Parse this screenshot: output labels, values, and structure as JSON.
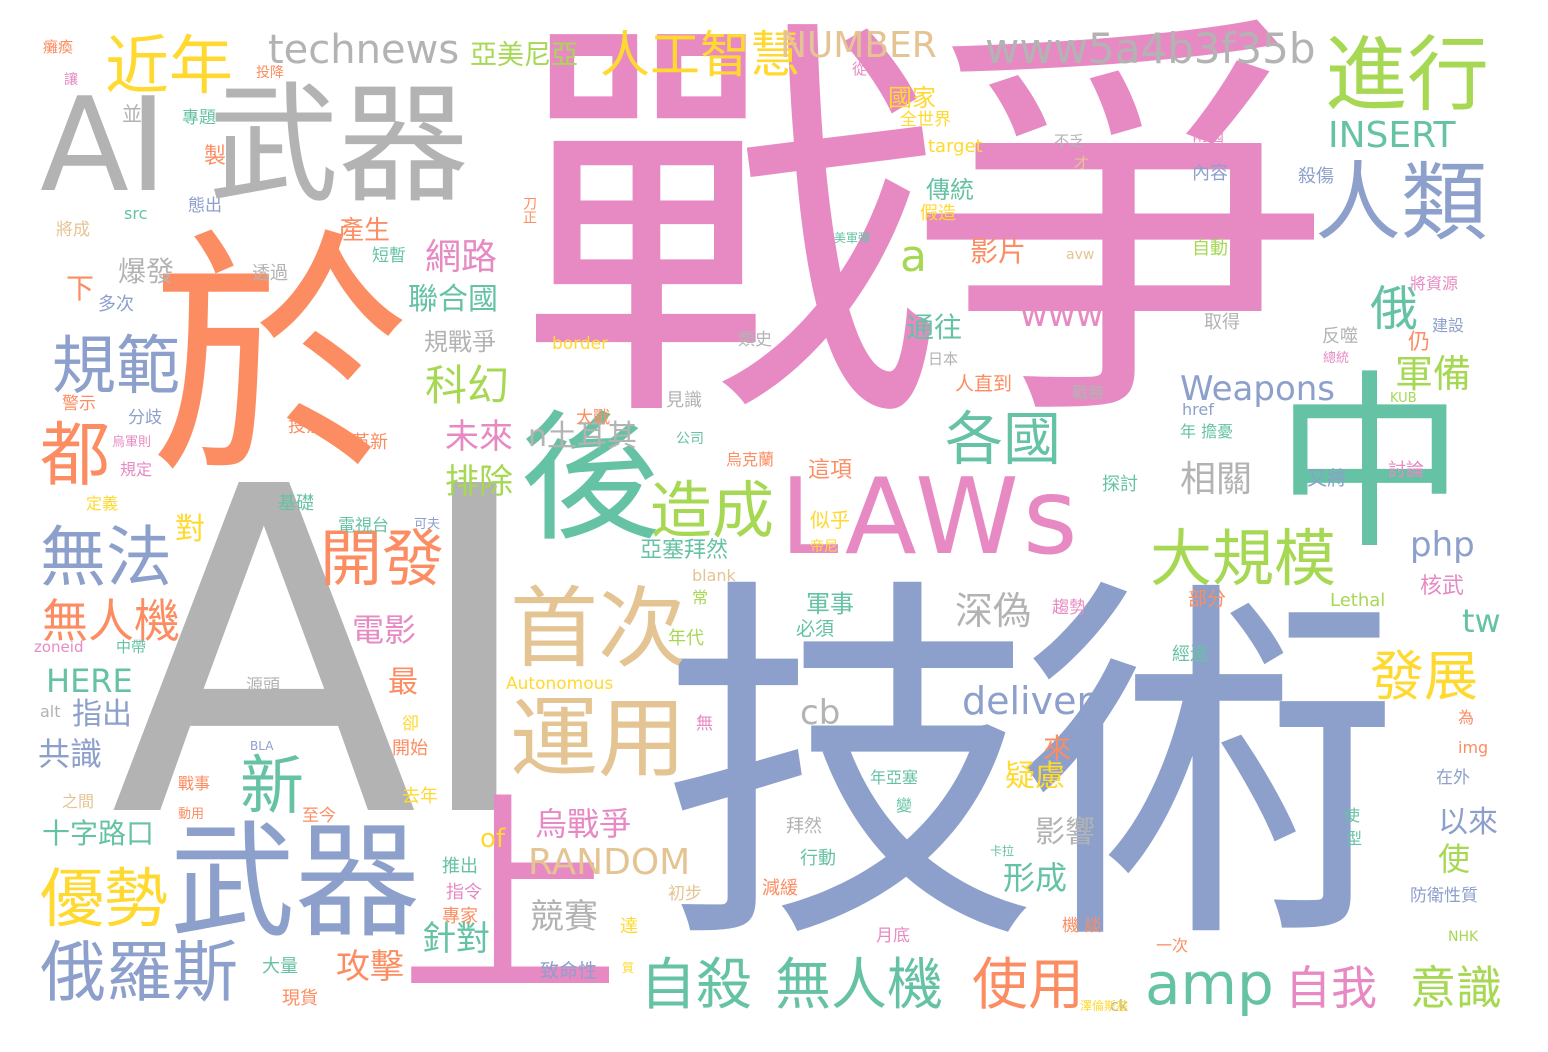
{
  "colors": {
    "gray": "#b3b3b3",
    "pink": "#e78ac3",
    "orange": "#fc8d62",
    "blue": "#8da0cb",
    "green": "#66c2a5",
    "lime": "#a6d854",
    "yellow": "#ffd92f",
    "tan": "#e5c494"
  },
  "words": [
    {
      "text": "戰爭",
      "color": "pink"
    },
    {
      "text": "AI",
      "color": "gray"
    },
    {
      "text": "技術",
      "color": "blue"
    },
    {
      "text": "於",
      "color": "orange"
    },
    {
      "text": "AI 武器",
      "color": "gray"
    },
    {
      "text": "中",
      "color": "green"
    },
    {
      "text": "武器",
      "color": "blue"
    },
    {
      "text": "LAWs",
      "color": "pink"
    },
    {
      "text": "後",
      "color": "green"
    },
    {
      "text": "上",
      "color": "pink"
    },
    {
      "text": "進行",
      "color": "lime"
    },
    {
      "text": "人類",
      "color": "blue"
    },
    {
      "text": "運用",
      "color": "tan"
    },
    {
      "text": "首次",
      "color": "tan"
    },
    {
      "text": "technews",
      "color": "gray"
    },
    {
      "text": "www5a4b3f35b",
      "color": "gray"
    },
    {
      "text": "人工智慧",
      "color": "yellow"
    },
    {
      "text": "NUMBER",
      "color": "tan"
    },
    {
      "text": "亞美尼亞",
      "color": "lime"
    },
    {
      "text": "近年",
      "color": "yellow"
    },
    {
      "text": "規範",
      "color": "blue"
    },
    {
      "text": "都",
      "color": "orange"
    },
    {
      "text": "無法",
      "color": "blue"
    },
    {
      "text": "無人機",
      "color": "orange"
    },
    {
      "text": "優勢",
      "color": "yellow"
    },
    {
      "text": "俄羅斯",
      "color": "blue"
    },
    {
      "text": "開發",
      "color": "orange"
    },
    {
      "text": "新",
      "color": "green"
    },
    {
      "text": "造成",
      "color": "lime"
    },
    {
      "text": "各國",
      "color": "green"
    },
    {
      "text": "大規模",
      "color": "lime"
    },
    {
      "text": "自殺",
      "color": "green"
    },
    {
      "text": "無人機",
      "color": "green"
    },
    {
      "text": "使用",
      "color": "orange"
    },
    {
      "text": "amp",
      "color": "green"
    },
    {
      "text": "自我",
      "color": "pink"
    },
    {
      "text": "意識",
      "color": "lime"
    },
    {
      "text": "發展",
      "color": "yellow"
    },
    {
      "text": "INSERT",
      "color": "green"
    },
    {
      "text": "俄",
      "color": "green"
    },
    {
      "text": "a",
      "color": "lime"
    },
    {
      "text": "www",
      "color": "pink"
    },
    {
      "text": "delivery",
      "color": "blue"
    },
    {
      "text": "Weapons",
      "color": "blue"
    },
    {
      "text": "RANDOM",
      "color": "tan"
    },
    {
      "text": "烏戰爭",
      "color": "pink"
    },
    {
      "text": "網路",
      "color": "pink"
    },
    {
      "text": "聯合國",
      "color": "green"
    },
    {
      "text": "科幻",
      "color": "lime"
    },
    {
      "text": "未來",
      "color": "pink"
    },
    {
      "text": "排除",
      "color": "lime"
    },
    {
      "text": "電影",
      "color": "pink"
    },
    {
      "text": "攻擊",
      "color": "orange"
    },
    {
      "text": "針對",
      "color": "green"
    },
    {
      "text": "競賽",
      "color": "gray"
    },
    {
      "text": "深偽",
      "color": "gray"
    },
    {
      "text": "相關",
      "color": "gray"
    },
    {
      "text": "軍備",
      "color": "lime"
    },
    {
      "text": "php",
      "color": "blue"
    },
    {
      "text": "tw",
      "color": "green"
    },
    {
      "text": "cb",
      "color": "gray"
    },
    {
      "text": "十字路口",
      "color": "green"
    },
    {
      "text": "HERE",
      "color": "green"
    },
    {
      "text": "共識",
      "color": "blue"
    },
    {
      "text": "指出",
      "color": "blue"
    },
    {
      "text": "形成",
      "color": "green"
    },
    {
      "text": "影響",
      "color": "gray"
    },
    {
      "text": "以來",
      "color": "blue"
    },
    {
      "text": "使",
      "color": "lime"
    },
    {
      "text": "軍事",
      "color": "green"
    },
    {
      "text": "傳統",
      "color": "green"
    },
    {
      "text": "通往",
      "color": "green"
    },
    {
      "text": "影片",
      "color": "orange"
    },
    {
      "text": "國家",
      "color": "yellow"
    },
    {
      "text": "產生",
      "color": "orange"
    },
    {
      "text": "爆發",
      "color": "gray"
    },
    {
      "text": "下",
      "color": "orange"
    },
    {
      "text": "規戰爭",
      "color": "gray"
    },
    {
      "text": "最",
      "color": "orange"
    },
    {
      "text": "疑慮",
      "color": "yellow"
    },
    {
      "text": "來",
      "color": "orange"
    },
    {
      "text": "of",
      "color": "yellow"
    },
    {
      "text": "n土耳其",
      "color": "gray"
    },
    {
      "text": "對",
      "color": "yellow"
    },
    {
      "text": "製",
      "color": "orange"
    },
    {
      "text": "並",
      "color": "gray"
    },
    {
      "text": "專題",
      "color": "green"
    },
    {
      "text": "態出",
      "color": "blue"
    },
    {
      "text": "src",
      "color": "green"
    },
    {
      "text": "將成",
      "color": "tan"
    },
    {
      "text": "短暫",
      "color": "green"
    },
    {
      "text": "透過",
      "color": "gray"
    },
    {
      "text": "多次",
      "color": "blue"
    },
    {
      "text": "分歧",
      "color": "blue"
    },
    {
      "text": "警示",
      "color": "orange"
    },
    {
      "text": "投注",
      "color": "orange"
    },
    {
      "text": "革新",
      "color": "orange"
    },
    {
      "text": "基礎",
      "color": "green"
    },
    {
      "text": "電視台",
      "color": "green"
    },
    {
      "text": "可夫",
      "color": "blue"
    },
    {
      "text": "亞塞拜然",
      "color": "green"
    },
    {
      "text": "似乎",
      "color": "yellow"
    },
    {
      "text": "帝尼",
      "color": "yellow"
    },
    {
      "text": "探討",
      "color": "green"
    },
    {
      "text": "討論",
      "color": "pink"
    },
    {
      "text": "又將",
      "color": "blue"
    },
    {
      "text": "年 擔憂",
      "color": "green"
    },
    {
      "text": "href",
      "color": "blue"
    },
    {
      "text": "KUB",
      "color": "lime"
    },
    {
      "text": "戰勝",
      "color": "gray"
    },
    {
      "text": "反噬",
      "color": "gray"
    },
    {
      "text": "總統",
      "color": "pink"
    },
    {
      "text": "仍",
      "color": "orange"
    },
    {
      "text": "建設",
      "color": "blue"
    },
    {
      "text": "將資源",
      "color": "pink"
    },
    {
      "text": "取得",
      "color": "gray"
    },
    {
      "text": "自動",
      "color": "lime"
    },
    {
      "text": "avw",
      "color": "tan"
    },
    {
      "text": "殺傷",
      "color": "blue"
    },
    {
      "text": "內容",
      "color": "blue"
    },
    {
      "text": "兩國",
      "color": "pink"
    },
    {
      "text": "不乏",
      "color": "gray"
    },
    {
      "text": "才",
      "color": "tan"
    },
    {
      "text": "全世界",
      "color": "yellow"
    },
    {
      "text": "target",
      "color": "yellow"
    },
    {
      "text": "假造",
      "color": "yellow"
    },
    {
      "text": "美軍彈",
      "color": "green"
    },
    {
      "text": "刀正",
      "color": "orange"
    },
    {
      "text": "從",
      "color": "pink"
    },
    {
      "text": "投降",
      "color": "orange"
    },
    {
      "text": "讓",
      "color": "pink"
    },
    {
      "text": "癱瘓",
      "color": "orange"
    },
    {
      "text": "人直到",
      "color": "orange"
    },
    {
      "text": "日本",
      "color": "gray"
    },
    {
      "text": "類史",
      "color": "gray"
    },
    {
      "text": "border",
      "color": "yellow"
    },
    {
      "text": "見識",
      "color": "gray"
    },
    {
      "text": "大戰",
      "color": "orange"
    },
    {
      "text": "公司",
      "color": "green"
    },
    {
      "text": "烏克蘭",
      "color": "orange"
    },
    {
      "text": "這項",
      "color": "orange"
    },
    {
      "text": "blank",
      "color": "tan"
    },
    {
      "text": "常",
      "color": "lime"
    },
    {
      "text": "年代",
      "color": "lime"
    },
    {
      "text": "必須",
      "color": "green"
    },
    {
      "text": "趨勢",
      "color": "pink"
    },
    {
      "text": "部分",
      "color": "orange"
    },
    {
      "text": "Lethal",
      "color": "lime"
    },
    {
      "text": "核武",
      "color": "pink"
    },
    {
      "text": "經過",
      "color": "green"
    },
    {
      "text": "為",
      "color": "orange"
    },
    {
      "text": "img",
      "color": "orange"
    },
    {
      "text": "在外",
      "color": "blue"
    },
    {
      "text": "使",
      "color": "green"
    },
    {
      "text": "型",
      "color": "green"
    },
    {
      "text": "防衛性質",
      "color": "blue"
    },
    {
      "text": "NHK",
      "color": "lime"
    },
    {
      "text": "ck",
      "color": "gray"
    },
    {
      "text": "一次",
      "color": "orange"
    },
    {
      "text": "機 談",
      "color": "orange"
    },
    {
      "text": "卡拉",
      "color": "green"
    },
    {
      "text": "澤倫斯基",
      "color": "yellow"
    },
    {
      "text": "月底",
      "color": "pink"
    },
    {
      "text": "減緩",
      "color": "orange"
    },
    {
      "text": "行動",
      "color": "green"
    },
    {
      "text": "拜然",
      "color": "gray"
    },
    {
      "text": "年亞塞",
      "color": "green"
    },
    {
      "text": "變",
      "color": "green"
    },
    {
      "text": "無",
      "color": "pink"
    },
    {
      "text": "初步",
      "color": "tan"
    },
    {
      "text": "Autonomous",
      "color": "yellow"
    },
    {
      "text": "致命性",
      "color": "blue"
    },
    {
      "text": "達",
      "color": "yellow"
    },
    {
      "text": "質",
      "color": "yellow"
    },
    {
      "text": "專家",
      "color": "orange"
    },
    {
      "text": "指令",
      "color": "pink"
    },
    {
      "text": "推出",
      "color": "green"
    },
    {
      "text": "現貨",
      "color": "orange"
    },
    {
      "text": "大量",
      "color": "green"
    },
    {
      "text": "去年",
      "color": "yellow"
    },
    {
      "text": "至今",
      "color": "orange"
    },
    {
      "text": "開始",
      "color": "orange"
    },
    {
      "text": "卻",
      "color": "yellow"
    },
    {
      "text": "BLA",
      "color": "blue"
    },
    {
      "text": "源頭",
      "color": "gray"
    },
    {
      "text": "alt",
      "color": "gray"
    },
    {
      "text": "zoneid",
      "color": "pink"
    },
    {
      "text": "中帶",
      "color": "green"
    },
    {
      "text": "之間",
      "color": "tan"
    },
    {
      "text": "戰事",
      "color": "orange"
    },
    {
      "text": "動用",
      "color": "orange"
    },
    {
      "text": "定義",
      "color": "yellow"
    },
    {
      "text": "規定",
      "color": "pink"
    },
    {
      "text": "烏軍則",
      "color": "pink"
    }
  ]
}
